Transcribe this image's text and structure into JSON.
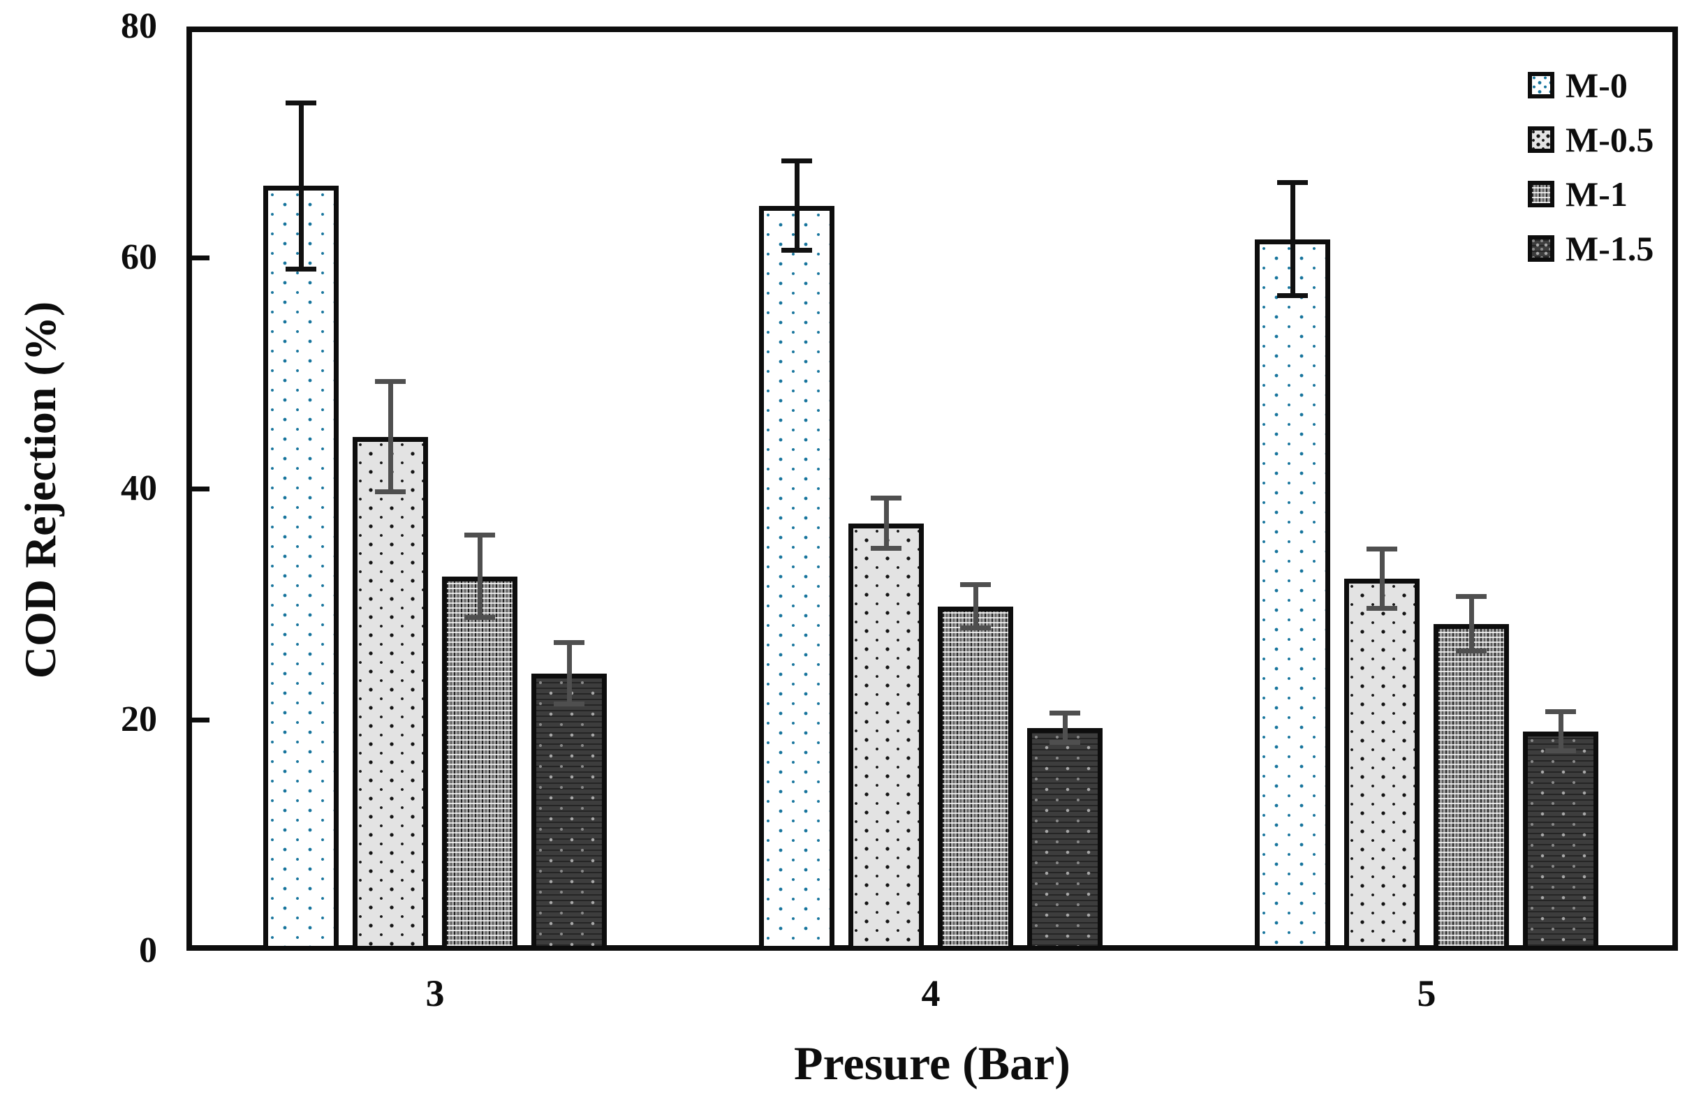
{
  "chart_data": {
    "type": "bar",
    "title": "",
    "xlabel": "Presure (Bar)",
    "ylabel": "COD Rejection (%)",
    "categories": [
      "3",
      "4",
      "5"
    ],
    "series": [
      {
        "name": "M-0",
        "pattern": "p-m0",
        "values": [
          66.2,
          64.5,
          61.6
        ],
        "errors": [
          7.2,
          3.9,
          4.9
        ],
        "error_color": "#111111"
      },
      {
        "name": "M-0.5",
        "pattern": "p-m05",
        "values": [
          44.5,
          37.0,
          32.2
        ],
        "errors": [
          4.8,
          2.2,
          2.6
        ],
        "error_color": "#4f4f4f"
      },
      {
        "name": "M-1",
        "pattern": "p-m1",
        "values": [
          32.4,
          29.8,
          28.3
        ],
        "errors": [
          3.6,
          1.9,
          2.4
        ],
        "error_color": "#4f4f4f"
      },
      {
        "name": "M-1.5",
        "pattern": "p-m15",
        "values": [
          24.0,
          19.3,
          19.0
        ],
        "errors": [
          2.7,
          1.3,
          1.7
        ],
        "error_color": "#4f4f4f"
      }
    ],
    "yticks": [
      0,
      20,
      40,
      60,
      80
    ],
    "ylim": [
      0,
      80
    ],
    "grid": false,
    "legend_position": "top-right",
    "colors": {
      "frame": "#0d0d0d",
      "text": "#0d0d0d",
      "m0_dot_blue": "#16749c",
      "background": "#ffffff"
    }
  }
}
